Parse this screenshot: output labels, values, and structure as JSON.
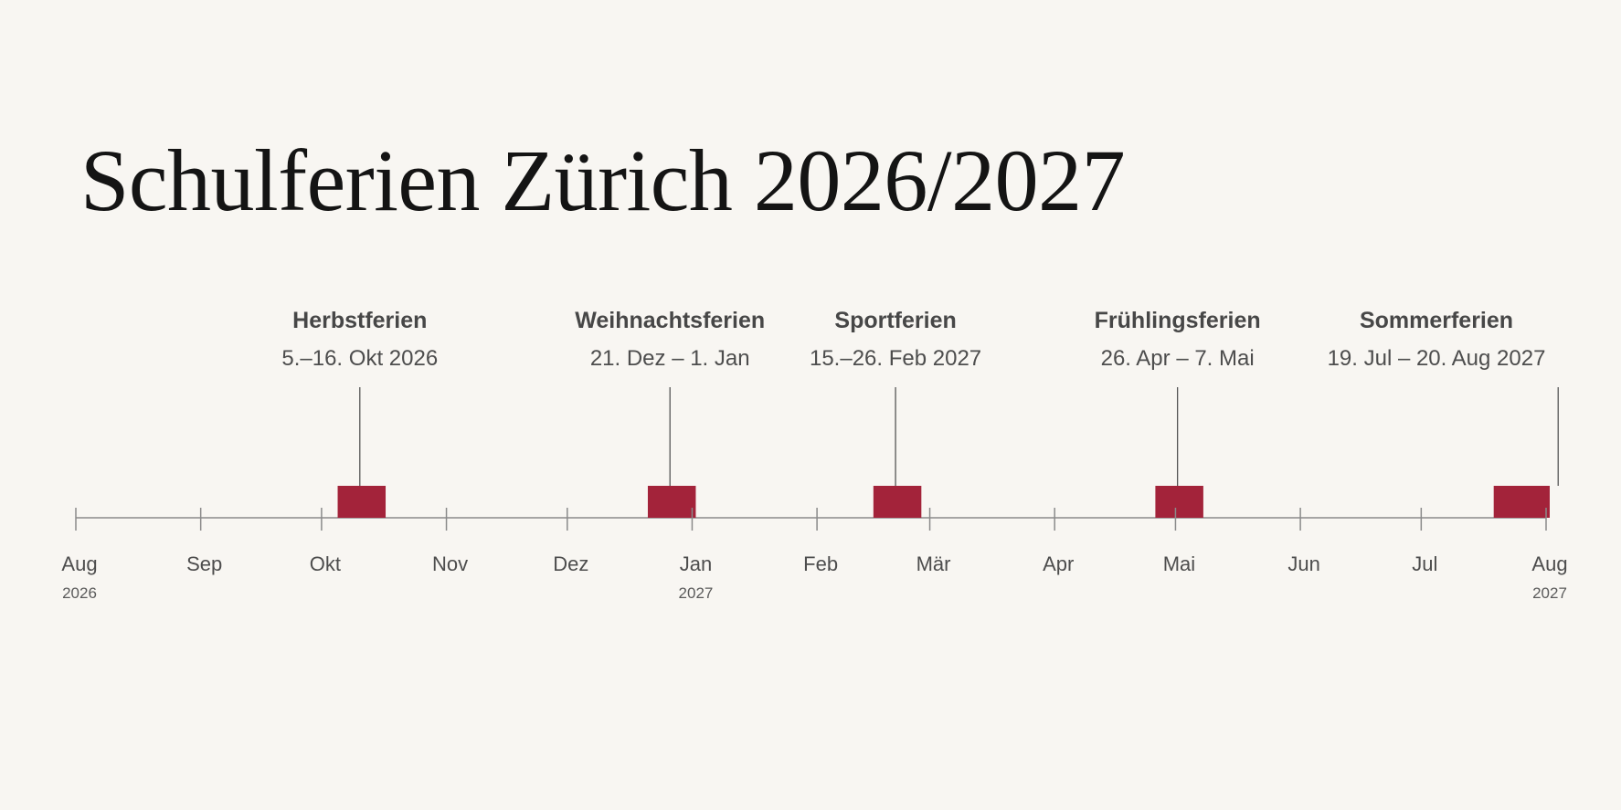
{
  "title": "Schulferien Zürich 2026/2027",
  "chart_data": {
    "type": "timeline",
    "title": "Schulferien Zürich 2026/2027",
    "x_range": [
      "2026-08-01",
      "2027-08-01"
    ],
    "ticks": [
      {
        "date": "2026-08-01",
        "label": "Aug",
        "year": "2026"
      },
      {
        "date": "2026-09-01",
        "label": "Sep",
        "year": ""
      },
      {
        "date": "2026-10-01",
        "label": "Okt",
        "year": ""
      },
      {
        "date": "2026-11-01",
        "label": "Nov",
        "year": ""
      },
      {
        "date": "2026-12-01",
        "label": "Dez",
        "year": ""
      },
      {
        "date": "2027-01-01",
        "label": "Jan",
        "year": "2027"
      },
      {
        "date": "2027-02-01",
        "label": "Feb",
        "year": ""
      },
      {
        "date": "2027-03-01",
        "label": "Mär",
        "year": ""
      },
      {
        "date": "2027-04-01",
        "label": "Apr",
        "year": ""
      },
      {
        "date": "2027-05-01",
        "label": "Mai",
        "year": ""
      },
      {
        "date": "2027-06-01",
        "label": "Jun",
        "year": ""
      },
      {
        "date": "2027-07-01",
        "label": "Jul",
        "year": ""
      },
      {
        "date": "2027-08-01",
        "label": "Aug",
        "year": "2027"
      }
    ],
    "events": [
      {
        "name": "Herbstferien",
        "date_label": "5.–16. Okt 2026",
        "start": "2026-10-05",
        "end": "2026-10-16"
      },
      {
        "name": "Weihnachtsferien",
        "date_label": "21. Dez – 1. Jan",
        "start": "2026-12-21",
        "end": "2027-01-01"
      },
      {
        "name": "Sportferien",
        "date_label": "15.–26. Feb 2027",
        "start": "2027-02-15",
        "end": "2027-02-26"
      },
      {
        "name": "Frühlingsferien",
        "date_label": "26. Apr – 7. Mai",
        "start": "2027-04-26",
        "end": "2027-05-07"
      },
      {
        "name": "Sommerferien",
        "date_label": "19. Jul – 20. Aug 2027",
        "start": "2027-07-19",
        "end": "2027-08-20"
      }
    ],
    "colors": {
      "bar": "#a3233a",
      "axis": "#8a8a8a",
      "leader": "#555555"
    }
  }
}
